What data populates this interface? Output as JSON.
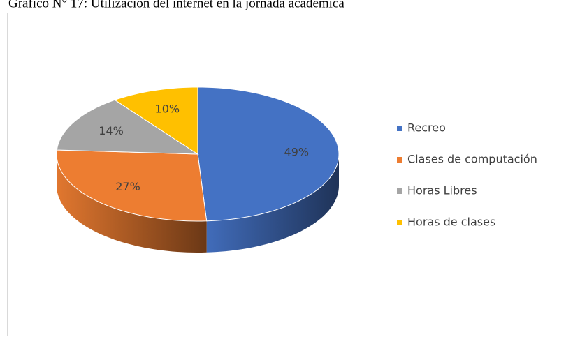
{
  "chart_data": {
    "type": "pie",
    "title": "Gráfico N° 17: Utilización del internet en la jornada académica",
    "categories": [
      "Recreo",
      "Clases de computación",
      "Horas Libres",
      "Horas de clases"
    ],
    "values": [
      49,
      27,
      14,
      10
    ],
    "value_labels": [
      "49%",
      "27%",
      "14%",
      "10%"
    ],
    "colors": [
      "#4472c4",
      "#ed7d31",
      "#a5a5a5",
      "#ffc000"
    ],
    "legend": "right"
  }
}
